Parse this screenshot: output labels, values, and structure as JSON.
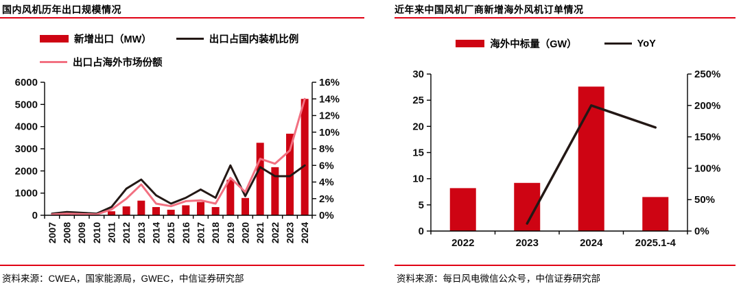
{
  "colors": {
    "bar_red": "#ce0413",
    "pink_line": "#f27081",
    "black_line": "#231815",
    "rule_red": "#e00013",
    "axis": "#000000"
  },
  "chart_data": [
    {
      "type": "bar+line",
      "title": "国内风机历年出口规模情况",
      "source": "资料来源：CWEA，国家能源局，GWEC，中信证券研究部",
      "categories": [
        "2007",
        "2008",
        "2009",
        "2010",
        "2011",
        "2012",
        "2013",
        "2014",
        "2015",
        "2016",
        "2017",
        "2018",
        "2019",
        "2020",
        "2021",
        "2022",
        "2023",
        "2024"
      ],
      "bar_series": {
        "name": "新增出口（MW）",
        "axis": "left",
        "color": "#ce0413",
        "values": [
          10,
          30,
          20,
          10,
          180,
          400,
          660,
          370,
          250,
          450,
          600,
          370,
          1600,
          780,
          3270,
          2170,
          3680,
          5250
        ]
      },
      "line_series": [
        {
          "name": "出口占国内装机比例",
          "axis": "right",
          "color": "#231815",
          "values": [
            0.2,
            0.4,
            0.3,
            0.2,
            1.0,
            3.2,
            4.3,
            2.4,
            1.4,
            2.1,
            3.1,
            2.1,
            6.0,
            2.3,
            5.8,
            4.7,
            4.7,
            6.0
          ]
        },
        {
          "name": "出口占海外市场份额",
          "axis": "right",
          "color": "#f27081",
          "values": [
            0.1,
            0.2,
            0.15,
            0.1,
            0.7,
            2.0,
            3.7,
            1.4,
            1.1,
            1.7,
            1.8,
            1.4,
            4.5,
            2.8,
            6.8,
            6.2,
            7.8,
            14.0
          ]
        }
      ],
      "y_left": {
        "min": 0,
        "max": 6000,
        "step": 1000,
        "suffix": ""
      },
      "y_right": {
        "min": 0,
        "max": 16,
        "step": 2,
        "suffix": "%"
      },
      "grid": false,
      "legend_position": "top"
    },
    {
      "type": "bar+line",
      "title": "近年来中国风机厂商新增海外风机订单情况",
      "source": "资料来源：每日风电微信公众号，中信证券研究部",
      "categories": [
        "2022",
        "2023",
        "2024",
        "2025.1-4"
      ],
      "bar_series": {
        "name": "海外中标量（GW）",
        "axis": "left",
        "color": "#ce0413",
        "values": [
          8.2,
          9.2,
          27.6,
          6.5
        ]
      },
      "line_series": [
        {
          "name": "YoY",
          "axis": "right",
          "color": "#231815",
          "values": [
            null,
            12,
            200,
            165
          ]
        }
      ],
      "y_left": {
        "min": 0,
        "max": 30,
        "step": 5,
        "suffix": ""
      },
      "y_right": {
        "min": 0,
        "max": 250,
        "step": 50,
        "suffix": "%"
      },
      "grid": false,
      "legend_position": "top"
    }
  ]
}
